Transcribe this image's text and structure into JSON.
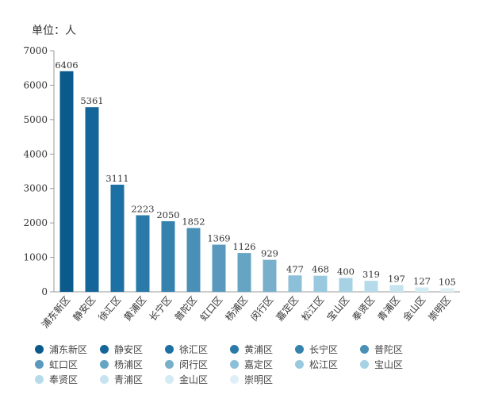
{
  "chart_data": {
    "type": "bar",
    "unit_label": "单位：人",
    "categories": [
      "浦东新区",
      "静安区",
      "徐汇区",
      "黄浦区",
      "长宁区",
      "普陀区",
      "虹口区",
      "杨浦区",
      "闵行区",
      "嘉定区",
      "松江区",
      "宝山区",
      "奉贤区",
      "青浦区",
      "金山区",
      "崇明区"
    ],
    "values": [
      6406,
      5361,
      3111,
      2223,
      2050,
      1852,
      1369,
      1126,
      929,
      477,
      468,
      400,
      319,
      197,
      127,
      105
    ],
    "colors": [
      "#0b5a8c",
      "#14669a",
      "#1d70a3",
      "#2a7aa9",
      "#3682ae",
      "#4a8fb6",
      "#5a99bd",
      "#66a4c4",
      "#78b0cc",
      "#8cbfd8",
      "#99c9de",
      "#a6d2e4",
      "#b5dbea",
      "#c6e3ef",
      "#d3ebf3",
      "#deeff5"
    ],
    "ylim": [
      0,
      7000
    ],
    "yticks": [
      0,
      1000,
      2000,
      3000,
      4000,
      5000,
      6000,
      7000
    ],
    "legend_position": "bottom"
  }
}
